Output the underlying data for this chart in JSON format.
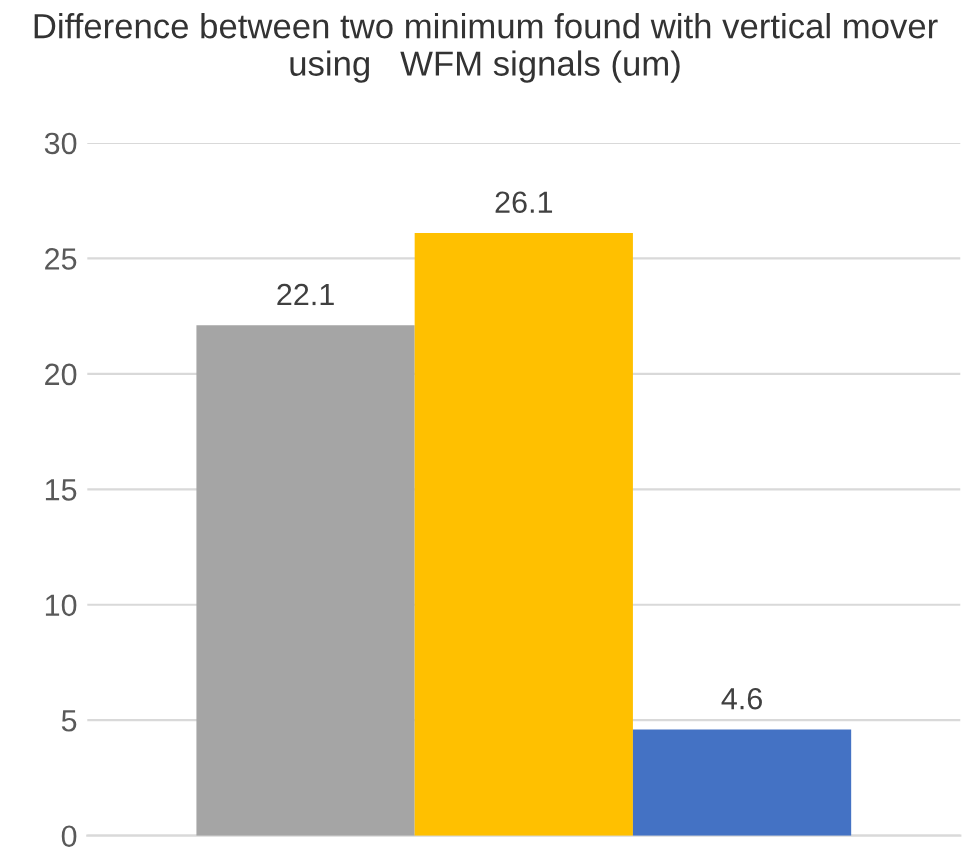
{
  "chart_data": {
    "type": "bar",
    "title": "Difference between two minimum found with vertical mover using   WFM signals (um)",
    "categories": [
      null
    ],
    "series": [
      {
        "color": "#a5a5a5",
        "values": [
          22.1
        ]
      },
      {
        "color": "#ffc000",
        "values": [
          26.1
        ]
      },
      {
        "color": "#4472c4",
        "values": [
          4.6
        ]
      }
    ],
    "ylim": [
      0,
      30
    ],
    "yticks": [
      0,
      5,
      10,
      15,
      20,
      25,
      30
    ],
    "grid": "y",
    "data_labels": true
  }
}
